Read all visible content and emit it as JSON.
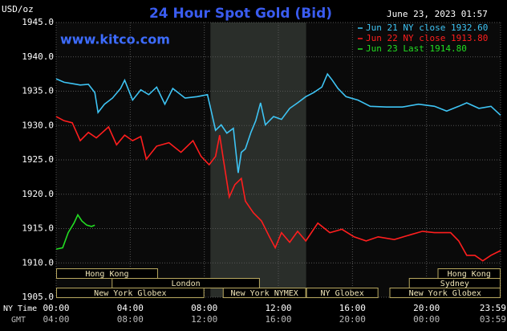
{
  "chart_data": {
    "type": "line",
    "title": "24 Hour Spot Gold (Bid)",
    "timestamp": "June 23, 2023 01:57",
    "website": "www.kitco.com",
    "y_label": "USD/oz",
    "x_label": "NY Time",
    "x2_label": "GMT",
    "xlim": [
      0,
      24
    ],
    "ylim": [
      1905,
      1945
    ],
    "yticks": [
      {
        "value": 1945,
        "label": "1945.0"
      },
      {
        "value": 1940,
        "label": "1940.0"
      },
      {
        "value": 1935,
        "label": "1935.0"
      },
      {
        "value": 1930,
        "label": "1930.0"
      },
      {
        "value": 1925,
        "label": "1925.0"
      },
      {
        "value": 1920,
        "label": "1920.0"
      },
      {
        "value": 1915,
        "label": "1915.0"
      },
      {
        "value": 1910,
        "label": "1910.0"
      },
      {
        "value": 1905,
        "label": "1905.0"
      }
    ],
    "xticks": [
      {
        "value": 0,
        "label": "00:00"
      },
      {
        "value": 4,
        "label": "04:00"
      },
      {
        "value": 8,
        "label": "08:00"
      },
      {
        "value": 12,
        "label": "12:00"
      },
      {
        "value": 16,
        "label": "16:00"
      },
      {
        "value": 20,
        "label": "20:00"
      },
      {
        "value": 24,
        "label": "23:59"
      }
    ],
    "xticks_gmt": [
      {
        "value": 0,
        "label": "04:00"
      },
      {
        "value": 4,
        "label": "08:00"
      },
      {
        "value": 8,
        "label": "12:00"
      },
      {
        "value": 12,
        "label": "16:00"
      },
      {
        "value": 16,
        "label": "20:00"
      },
      {
        "value": 20,
        "label": "00:00"
      },
      {
        "value": 24,
        "label": "03:59"
      }
    ],
    "grid": true,
    "shaded_x": [
      8.33,
      13.5
    ],
    "series": [
      {
        "name": "Jun 21 NY close 1932.60",
        "color": "#3ec4f4",
        "x": [
          0,
          0.43,
          0.87,
          1.3,
          1.74,
          2.09,
          2.26,
          2.61,
          3.04,
          3.48,
          3.7,
          4.13,
          4.57,
          5,
          5.43,
          5.87,
          6.3,
          6.96,
          7.61,
          8.17,
          8.39,
          8.61,
          8.91,
          9.22,
          9.57,
          9.83,
          10,
          10.22,
          10.52,
          10.78,
          11.04,
          11.3,
          11.74,
          12.17,
          12.61,
          13.04,
          13.48,
          13.91,
          14.35,
          14.65,
          14.91,
          15.22,
          15.65,
          16.3,
          16.96,
          17.83,
          18.7,
          19.57,
          20.43,
          21.09,
          21.74,
          22.17,
          22.83,
          23.48,
          24
        ],
        "values": [
          1936.8,
          1936.3,
          1936.1,
          1935.9,
          1936.0,
          1934.8,
          1931.9,
          1933.1,
          1934.0,
          1935.4,
          1936.6,
          1933.7,
          1935.2,
          1934.5,
          1935.6,
          1933.1,
          1935.4,
          1934.0,
          1934.2,
          1934.5,
          1931.9,
          1929.3,
          1930.1,
          1928.9,
          1929.6,
          1923.1,
          1926.1,
          1926.6,
          1929.0,
          1930.7,
          1933.3,
          1930.1,
          1931.3,
          1930.9,
          1932.5,
          1933.3,
          1934.2,
          1934.8,
          1935.6,
          1937.5,
          1936.6,
          1935.4,
          1934.2,
          1933.7,
          1932.8,
          1932.7,
          1932.7,
          1933.1,
          1932.8,
          1932.1,
          1932.8,
          1933.3,
          1932.5,
          1932.8,
          1931.5
        ]
      },
      {
        "name": "Jun 22 NY close 1913.80",
        "color": "#ff1e1e",
        "x": [
          0,
          0.43,
          0.87,
          1.3,
          1.74,
          2.17,
          2.83,
          3.26,
          3.7,
          4.13,
          4.57,
          4.87,
          5.43,
          6.09,
          6.74,
          7.39,
          7.83,
          8.26,
          8.61,
          8.83,
          9.04,
          9.35,
          9.65,
          10,
          10.22,
          10.65,
          11.09,
          11.52,
          11.83,
          12.17,
          12.61,
          13.04,
          13.48,
          14.13,
          14.78,
          15.43,
          16.09,
          16.74,
          17.39,
          18.26,
          19.13,
          19.78,
          20.43,
          21.3,
          21.74,
          22.17,
          22.61,
          23.04,
          23.48,
          24
        ],
        "values": [
          1931.3,
          1930.7,
          1930.4,
          1927.8,
          1929.0,
          1928.2,
          1929.8,
          1927.2,
          1928.6,
          1927.8,
          1928.4,
          1925.1,
          1927.0,
          1927.5,
          1926.1,
          1927.8,
          1925.5,
          1924.3,
          1925.5,
          1928.6,
          1924.9,
          1919.6,
          1921.4,
          1922.3,
          1919.0,
          1917.3,
          1916.1,
          1913.8,
          1912.2,
          1914.4,
          1913.0,
          1914.6,
          1913.2,
          1915.8,
          1914.4,
          1914.9,
          1913.8,
          1913.2,
          1913.8,
          1913.4,
          1914.1,
          1914.6,
          1914.4,
          1914.4,
          1913.2,
          1911.1,
          1911.1,
          1910.3,
          1911.1,
          1911.8
        ]
      },
      {
        "name": "Jun 23 Last 1914.80",
        "color": "#22dd22",
        "x": [
          0,
          0.35,
          0.65,
          0.96,
          1.17,
          1.39,
          1.65,
          1.91,
          2.09
        ],
        "values": [
          1912.0,
          1912.2,
          1914.4,
          1915.8,
          1917.0,
          1916.1,
          1915.5,
          1915.3,
          1915.5
        ]
      }
    ],
    "session_rows": [
      [
        {
          "label": "Hong Kong",
          "start": 0,
          "end": 5.5
        },
        {
          "label": "Hong Kong",
          "start": 20.6,
          "end": 24
        }
      ],
      [
        {
          "label": "London",
          "start": 3,
          "end": 11
        },
        {
          "label": "Sydney",
          "start": 19.05,
          "end": 24
        }
      ],
      [
        {
          "label": "New York Globex",
          "start": 0,
          "end": 8
        },
        {
          "label": "New York NYMEX",
          "start": 9,
          "end": 13.5
        },
        {
          "label": "NY Globex",
          "start": 13.5,
          "end": 17.4
        },
        {
          "label": "New York Globex",
          "start": 18,
          "end": 24
        }
      ]
    ]
  }
}
